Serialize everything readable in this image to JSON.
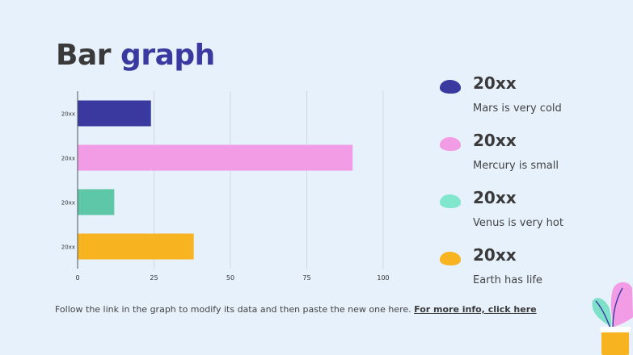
{
  "slide": {
    "title_part1": "Bar",
    "title_part2": "graph",
    "footer_text": "Follow the link in the graph to modify its data and then paste the new one here. ",
    "footer_link": "For more info, click here"
  },
  "legend": [
    {
      "title": "20xx",
      "desc": "Mars is very cold",
      "color": "#39399f"
    },
    {
      "title": "20xx",
      "desc": "Mercury is small",
      "color": "#f39ce6"
    },
    {
      "title": "20xx",
      "desc": "Venus is very hot",
      "color": "#80e6cc"
    },
    {
      "title": "20xx",
      "desc": "Earth has life",
      "color": "#f7b320"
    }
  ],
  "chart_data": {
    "type": "bar",
    "orientation": "horizontal",
    "categories": [
      "20xx",
      "20xx",
      "20xx",
      "20xx"
    ],
    "values": [
      24,
      90,
      12,
      38
    ],
    "colors": [
      "#39399f",
      "#f39ce6",
      "#5dc7a7",
      "#f7b320"
    ],
    "xlim": [
      0,
      100
    ],
    "xticks": [
      0,
      25,
      50,
      75,
      100
    ],
    "grid": true,
    "title": "",
    "xlabel": "",
    "ylabel": ""
  }
}
